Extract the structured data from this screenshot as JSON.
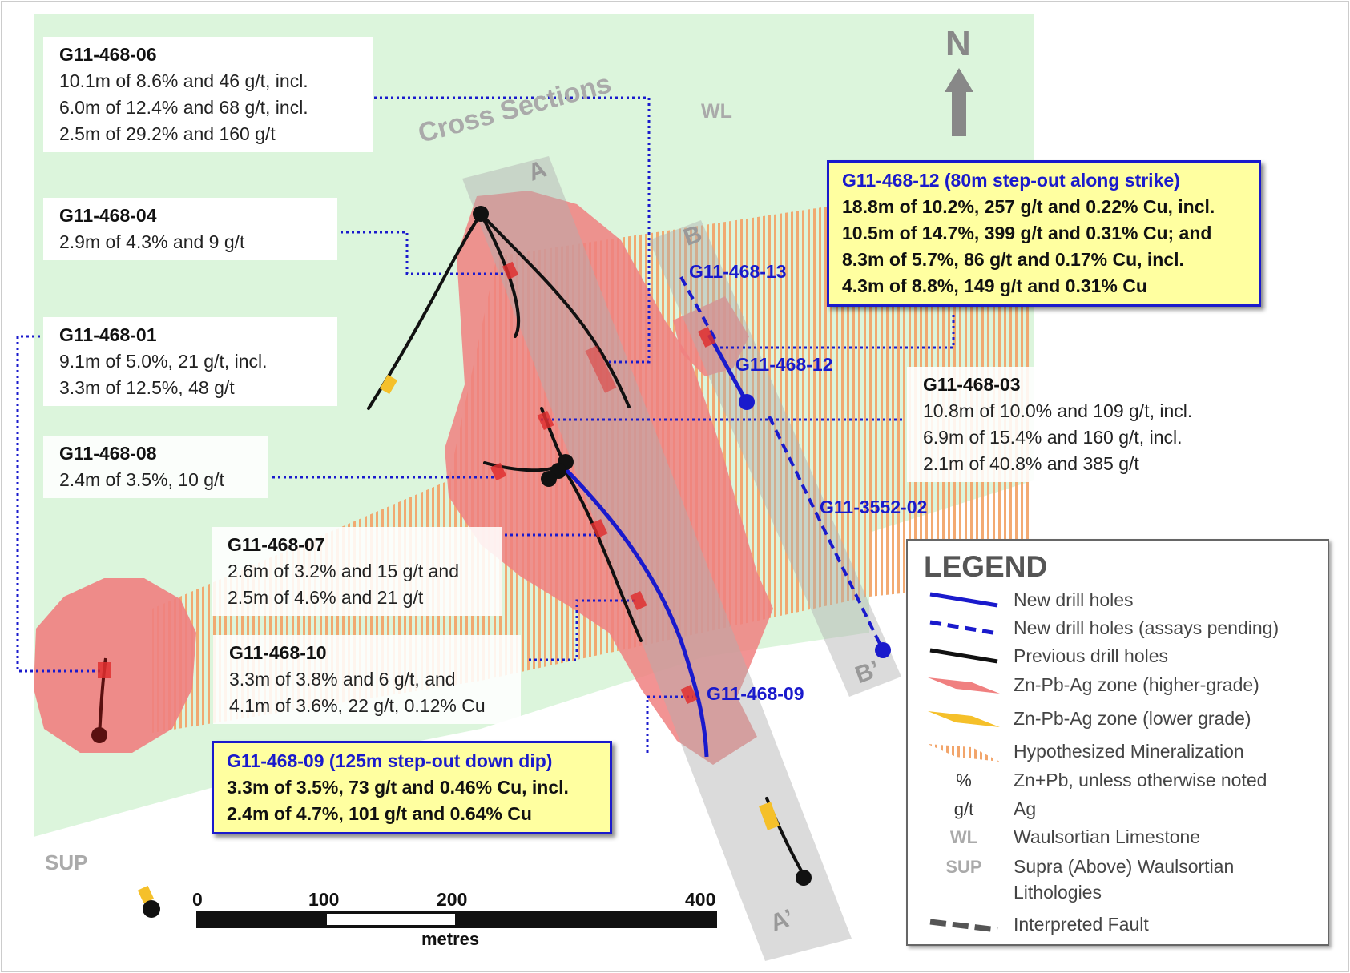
{
  "map": {
    "north_label": "N",
    "region_labels": {
      "wl": "WL",
      "sup": "SUP"
    },
    "cross_sections_title": "Cross Sections",
    "sections": {
      "a": "A",
      "a_prime": "A’",
      "b": "B",
      "b_prime": "B’"
    },
    "hole_labels": {
      "h13": "G11-468-13",
      "h12": "G11-468-12",
      "h3552": "G11-3552-02",
      "h09": "G11-468-09"
    },
    "colors": {
      "background_green": "#dcf5dc",
      "high_grade_zone": "#f08080",
      "low_grade_zone": "#f5c02a",
      "hypothesized": "#f2a56b",
      "new_hole": "#1a1acc",
      "previous_hole": "#111111",
      "section_band": "#bbbbbb"
    }
  },
  "callouts": [
    {
      "title": "G11-468-06",
      "lines": [
        "10.1m of 8.6% and 46 g/t, incl.",
        "6.0m of 12.4% and 68 g/t, incl.",
        "2.5m of 29.2% and 160 g/t"
      ]
    },
    {
      "title": "G11-468-04",
      "lines": [
        "2.9m of 4.3% and 9 g/t"
      ]
    },
    {
      "title": "G11-468-01",
      "lines": [
        "9.1m of 5.0%, 21 g/t, incl.",
        "3.3m of 12.5%, 48 g/t"
      ]
    },
    {
      "title": "G11-468-08",
      "lines": [
        "2.4m of 3.5%, 10 g/t"
      ]
    },
    {
      "title": "G11-468-07",
      "lines": [
        "2.6m of 3.2% and 15 g/t and",
        "2.5m of 4.6% and 21 g/t"
      ]
    },
    {
      "title": "G11-468-10",
      "lines": [
        "3.3m of 3.8% and 6 g/t, and",
        "4.1m of 3.6%, 22 g/t, 0.12% Cu"
      ]
    },
    {
      "title": "G11-468-03",
      "lines": [
        "10.8m of 10.0% and 109 g/t, incl.",
        "6.9m of 15.4% and 160 g/t, incl.",
        "2.1m of 40.8% and 385 g/t"
      ]
    }
  ],
  "highlights": [
    {
      "title": "G11-468-12 (80m step-out along strike)",
      "lines": [
        "18.8m of 10.2%, 257 g/t and 0.22% Cu, incl.",
        "10.5m of 14.7%, 399 g/t and 0.31% Cu; and",
        "8.3m of 5.7%, 86 g/t and 0.17% Cu, incl.",
        "4.3m of 8.8%, 149 g/t and 0.31% Cu"
      ]
    },
    {
      "title": "G11-468-09 (125m step-out down dip)",
      "lines": [
        "3.3m of 3.5%, 73 g/t and 0.46% Cu, incl.",
        "2.4m of 4.7%, 101 g/t and 0.64% Cu"
      ]
    }
  ],
  "scale_bar": {
    "ticks": [
      "0",
      "100",
      "200",
      "400"
    ],
    "unit": "metres"
  },
  "legend": {
    "title": "LEGEND",
    "items": [
      {
        "symbol": "new-drill-hole-line",
        "text": "New drill holes"
      },
      {
        "symbol": "new-drill-hole-dashed",
        "text": "New drill holes (assays pending)"
      },
      {
        "symbol": "previous-drill-hole-line",
        "text": "Previous drill holes"
      },
      {
        "symbol": "high-grade-swatch",
        "text": "Zn-Pb-Ag zone (higher-grade)"
      },
      {
        "symbol": "low-grade-swatch",
        "text": "Zn-Pb-Ag zone (lower grade)"
      },
      {
        "symbol": "hypothesized-swatch",
        "text": "Hypothesized Mineralization"
      },
      {
        "symbol_text": "%",
        "text": "Zn+Pb, unless otherwise noted"
      },
      {
        "symbol_text": "g/t",
        "text": "Ag"
      },
      {
        "symbol_text": "WL",
        "text": "Waulsortian Limestone"
      },
      {
        "symbol_text": "SUP",
        "text": "Supra (Above) Waulsortian",
        "text2": "Lithologies"
      },
      {
        "symbol": "fault-dashed",
        "text": "Interpreted Fault"
      }
    ]
  }
}
